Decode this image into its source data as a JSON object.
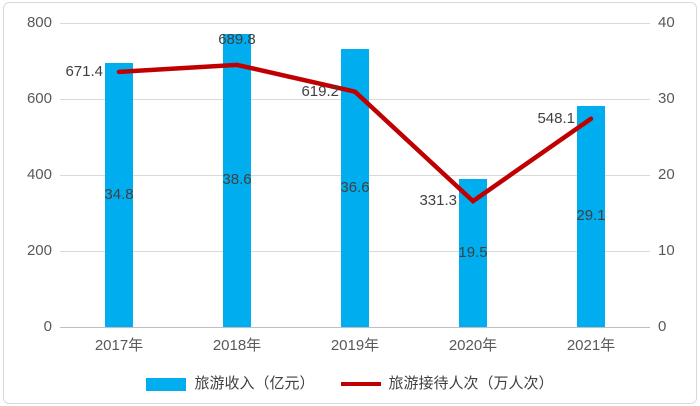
{
  "chart_data": {
    "type": "combo-bar-line",
    "categories": [
      "2017年",
      "2018年",
      "2019年",
      "2020年",
      "2021年"
    ],
    "series": [
      {
        "name": "旅游收入（亿元）",
        "type": "bar",
        "axis": "right",
        "color": "#00AEEF",
        "values": [
          34.8,
          38.6,
          36.6,
          19.5,
          29.1
        ],
        "labels": [
          "34.8",
          "38.6",
          "36.6",
          "19.5",
          "29.1"
        ],
        "label_placement": "inside-center"
      },
      {
        "name": "旅游接待人次（万人次）",
        "type": "line",
        "axis": "left",
        "color": "#C00000",
        "values": [
          671.4,
          689.8,
          619.2,
          331.3,
          548.1
        ],
        "labels": [
          "671.4",
          "689.8",
          "619.2",
          "331.3",
          "548.1"
        ],
        "label_placements": [
          "left",
          "above",
          "left",
          "left",
          "left"
        ]
      }
    ],
    "left_axis": {
      "min": 0,
      "max": 800,
      "ticks": [
        0,
        200,
        400,
        600,
        800
      ],
      "tick_labels": [
        "0",
        "200",
        "400",
        "600",
        "800"
      ]
    },
    "right_axis": {
      "min": 0,
      "max": 40,
      "ticks": [
        0,
        10,
        20,
        30,
        40
      ],
      "tick_labels": [
        "0",
        "10",
        "20",
        "30",
        "40"
      ]
    },
    "grid": true,
    "legend_position": "bottom",
    "title": ""
  },
  "legend": {
    "items": [
      {
        "label": "旅游收入（亿元）",
        "swatch": "bar",
        "color": "#00AEEF"
      },
      {
        "label": "旅游接待人次（万人次）",
        "swatch": "line",
        "color": "#C00000"
      }
    ]
  },
  "colors": {
    "bar": "#00AEEF",
    "line": "#C00000",
    "gridline": "#D9D9D9",
    "axis_line": "#BFBFBF",
    "tick_text": "#595959",
    "label_text": "#404040",
    "background": "#FFFFFF",
    "border": "#D9D9D9"
  }
}
